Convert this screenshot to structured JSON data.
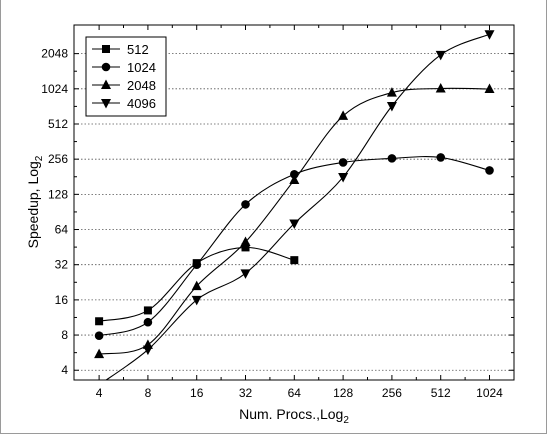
{
  "chart_data": {
    "type": "line",
    "title": "",
    "xlabel": "Num. Procs.,Log",
    "xlabel_sub": "2",
    "ylabel": "Speedup, Log",
    "ylabel_sub": "2",
    "x_scale": "log2",
    "y_scale": "log2",
    "x": [
      4,
      8,
      16,
      32,
      64,
      128,
      256,
      512,
      1024
    ],
    "x_ticks": [
      "4",
      "8",
      "16",
      "32",
      "64",
      "128",
      "256",
      "512",
      "1024"
    ],
    "y_ticks": [
      "4",
      "8",
      "16",
      "32",
      "64",
      "128",
      "256",
      "512",
      "1024",
      "2048"
    ],
    "y_tick_values": [
      4,
      8,
      16,
      32,
      64,
      128,
      256,
      512,
      1024,
      2048
    ],
    "xlim": [
      2.8,
      1450
    ],
    "ylim": [
      3.3,
      3600
    ],
    "grid": "horizontal-dotted",
    "legend_position": "top-left",
    "series": [
      {
        "name": "512",
        "marker": "square",
        "x": [
          4,
          8,
          16,
          32,
          64
        ],
        "values": [
          10.5,
          13,
          33,
          45,
          35
        ]
      },
      {
        "name": "1024",
        "marker": "circle",
        "x": [
          4,
          8,
          16,
          32,
          64,
          128,
          256,
          512,
          1024
        ],
        "values": [
          7.9,
          10.3,
          32,
          105,
          190,
          240,
          260,
          265,
          205
        ]
      },
      {
        "name": "2048",
        "marker": "triangle-up",
        "x": [
          4,
          8,
          16,
          32,
          64,
          128,
          256,
          512,
          1024
        ],
        "values": [
          5.5,
          6.6,
          21,
          50,
          170,
          600,
          950,
          1030,
          1020
        ]
      },
      {
        "name": "4096",
        "marker": "triangle-down",
        "x": [
          4,
          8,
          16,
          32,
          64,
          128,
          256,
          512,
          1024
        ],
        "values": [
          3,
          6,
          16,
          27,
          72,
          180,
          730,
          2000,
          3000
        ]
      }
    ]
  }
}
